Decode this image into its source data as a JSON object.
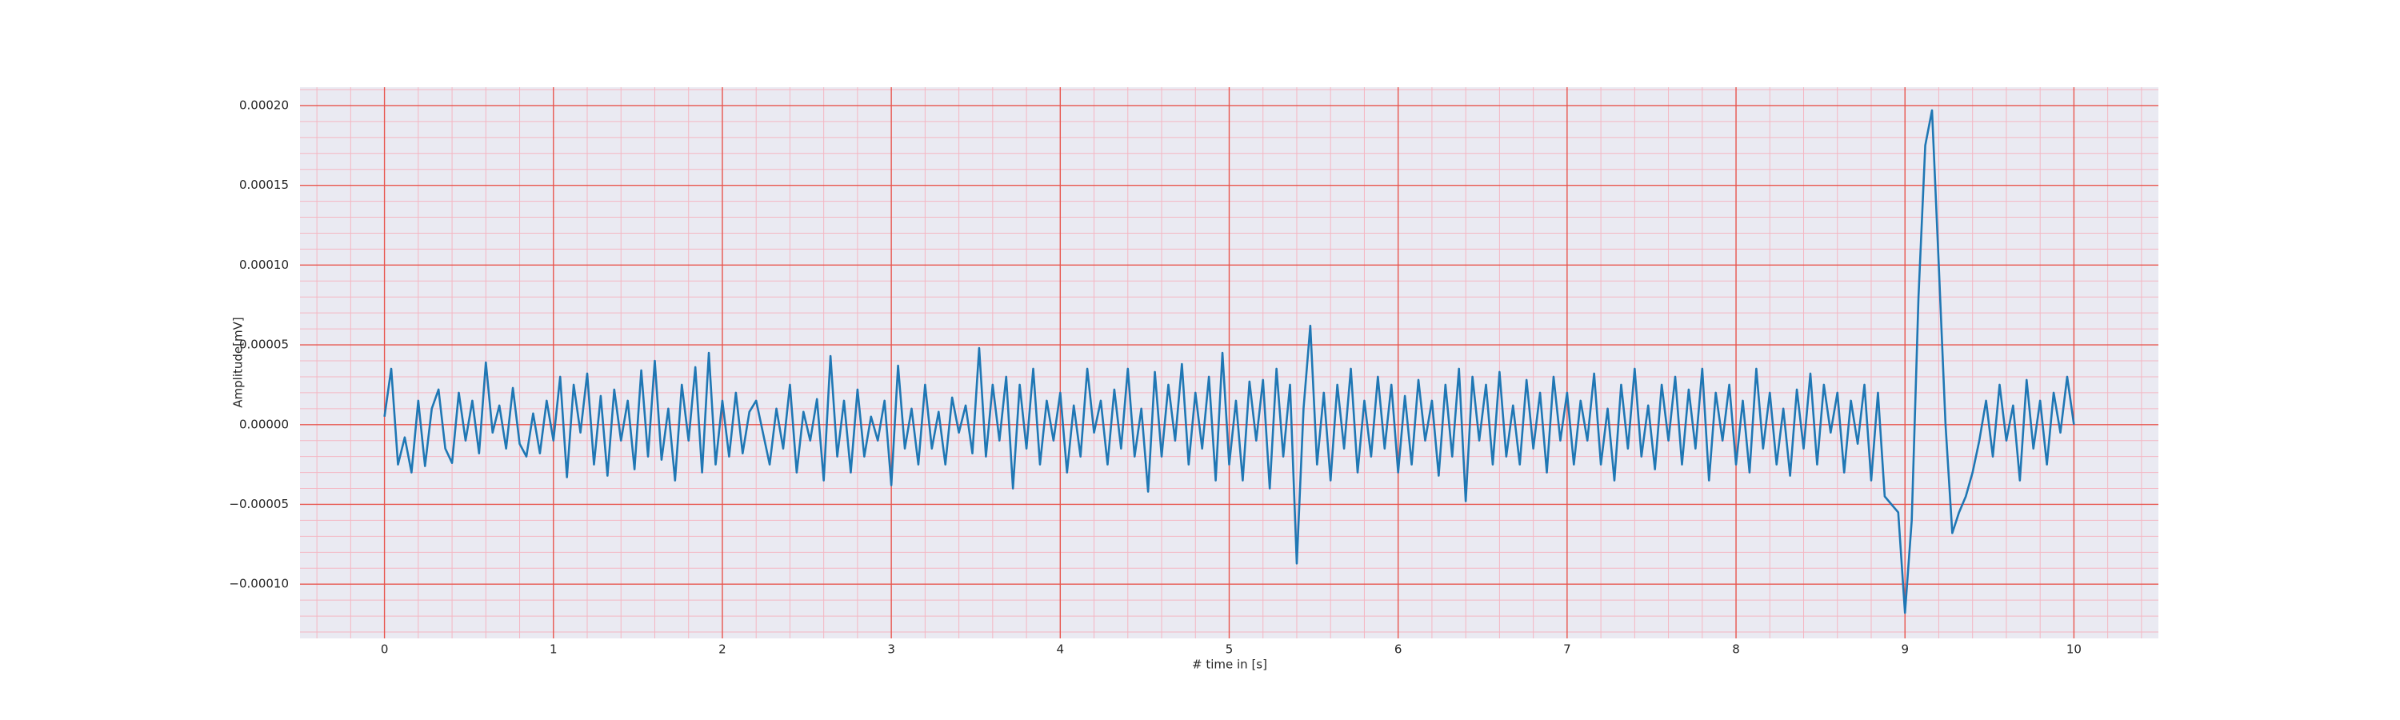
{
  "chart_data": {
    "type": "line",
    "xlabel": "# time in [s]",
    "ylabel": "Amplitude[mV]",
    "color": "#1f77b4",
    "grid": true,
    "minor_grid": true,
    "xlim": [
      -0.5,
      10.5
    ],
    "xticks": [
      0,
      1,
      2,
      3,
      4,
      5,
      6,
      7,
      8,
      9,
      10
    ],
    "ylim": [
      -0.000134,
      0.0002115
    ],
    "yticks": [
      {
        "value": -0.0001,
        "label": "−0.00010"
      },
      {
        "value": -5e-05,
        "label": "−0.00005"
      },
      {
        "value": 0,
        "label": "0.00000"
      },
      {
        "value": 5e-05,
        "label": "0.00005"
      },
      {
        "value": 0.0001,
        "label": "0.00010"
      },
      {
        "value": 0.00015,
        "label": "0.00015"
      },
      {
        "value": 0.0002,
        "label": "0.00020"
      }
    ],
    "x": [
      0,
      0.04,
      0.08,
      0.12,
      0.16,
      0.2,
      0.24,
      0.28,
      0.32,
      0.36,
      0.4,
      0.44,
      0.48,
      0.52,
      0.56,
      0.6,
      0.64,
      0.68,
      0.72,
      0.76,
      0.8,
      0.84,
      0.88,
      0.92,
      0.96,
      1,
      1.04,
      1.08,
      1.12,
      1.16,
      1.2,
      1.24,
      1.28,
      1.32,
      1.36,
      1.4,
      1.44,
      1.48,
      1.52,
      1.56,
      1.6,
      1.64,
      1.68,
      1.72,
      1.76,
      1.8,
      1.84,
      1.88,
      1.92,
      1.96,
      2,
      2.04,
      2.08,
      2.12,
      2.16,
      2.2,
      2.24,
      2.28,
      2.32,
      2.36,
      2.4,
      2.44,
      2.48,
      2.52,
      2.56,
      2.6,
      2.64,
      2.68,
      2.72,
      2.76,
      2.8,
      2.84,
      2.88,
      2.92,
      2.96,
      3,
      3.04,
      3.08,
      3.12,
      3.16,
      3.2,
      3.24,
      3.28,
      3.32,
      3.36,
      3.4,
      3.44,
      3.48,
      3.52,
      3.56,
      3.6,
      3.64,
      3.68,
      3.72,
      3.76,
      3.8,
      3.84,
      3.88,
      3.92,
      3.96,
      4,
      4.04,
      4.08,
      4.12,
      4.16,
      4.2,
      4.24,
      4.28,
      4.32,
      4.36,
      4.4,
      4.44,
      4.48,
      4.52,
      4.56,
      4.6,
      4.64,
      4.68,
      4.72,
      4.76,
      4.8,
      4.84,
      4.88,
      4.92,
      4.96,
      5,
      5.04,
      5.08,
      5.12,
      5.16,
      5.2,
      5.24,
      5.28,
      5.32,
      5.36,
      5.4,
      5.44,
      5.48,
      5.52,
      5.56,
      5.6,
      5.64,
      5.68,
      5.72,
      5.76,
      5.8,
      5.84,
      5.88,
      5.92,
      5.96,
      6,
      6.04,
      6.08,
      6.12,
      6.16,
      6.2,
      6.24,
      6.28,
      6.32,
      6.36,
      6.4,
      6.44,
      6.48,
      6.52,
      6.56,
      6.6,
      6.64,
      6.68,
      6.72,
      6.76,
      6.8,
      6.84,
      6.88,
      6.92,
      6.96,
      7,
      7.04,
      7.08,
      7.12,
      7.16,
      7.2,
      7.24,
      7.28,
      7.32,
      7.36,
      7.4,
      7.44,
      7.48,
      7.52,
      7.56,
      7.6,
      7.64,
      7.68,
      7.72,
      7.76,
      7.8,
      7.84,
      7.88,
      7.92,
      7.96,
      8,
      8.04,
      8.08,
      8.12,
      8.16,
      8.2,
      8.24,
      8.28,
      8.32,
      8.36,
      8.4,
      8.44,
      8.48,
      8.52,
      8.56,
      8.6,
      8.64,
      8.68,
      8.72,
      8.76,
      8.8,
      8.84,
      8.88,
      8.92,
      8.96,
      9,
      9.04,
      9.08,
      9.12,
      9.16,
      9.2,
      9.24,
      9.28,
      9.32,
      9.36,
      9.4,
      9.44,
      9.48,
      9.52,
      9.56,
      9.6,
      9.64,
      9.68,
      9.72,
      9.76,
      9.8,
      9.84,
      9.88,
      9.92,
      9.96,
      10
    ],
    "values": [
      5e-06,
      3.5e-05,
      -2.5e-05,
      -8e-06,
      -3e-05,
      1.5e-05,
      -2.6e-05,
      1e-05,
      2.2e-05,
      -1.5e-05,
      -2.4e-05,
      2e-05,
      -1e-05,
      1.5e-05,
      -1.8e-05,
      3.9e-05,
      -5e-06,
      1.2e-05,
      -1.5e-05,
      2.3e-05,
      -1.2e-05,
      -2e-05,
      7e-06,
      -1.8e-05,
      1.5e-05,
      -1e-05,
      3e-05,
      -3.3e-05,
      2.5e-05,
      -5e-06,
      3.2e-05,
      -2.5e-05,
      1.8e-05,
      -3.2e-05,
      2.2e-05,
      -1e-05,
      1.5e-05,
      -2.8e-05,
      3.4e-05,
      -2e-05,
      4e-05,
      -2.2e-05,
      1e-05,
      -3.5e-05,
      2.5e-05,
      -1e-05,
      3.6e-05,
      -3e-05,
      4.5e-05,
      -2.5e-05,
      1.5e-05,
      -2e-05,
      2e-05,
      -1.8e-05,
      8e-06,
      1.5e-05,
      -5e-06,
      -2.5e-05,
      1e-05,
      -1.5e-05,
      2.5e-05,
      -3e-05,
      8e-06,
      -1e-05,
      1.6e-05,
      -3.5e-05,
      4.3e-05,
      -2e-05,
      1.5e-05,
      -3e-05,
      2.2e-05,
      -2e-05,
      5e-06,
      -1e-05,
      1.5e-05,
      -3.8e-05,
      3.7e-05,
      -1.5e-05,
      1e-05,
      -2.5e-05,
      2.5e-05,
      -1.5e-05,
      8e-06,
      -2.5e-05,
      1.7e-05,
      -5e-06,
      1.2e-05,
      -1.8e-05,
      4.8e-05,
      -2e-05,
      2.5e-05,
      -1e-05,
      3e-05,
      -4e-05,
      2.5e-05,
      -1.5e-05,
      3.5e-05,
      -2.5e-05,
      1.5e-05,
      -1e-05,
      2e-05,
      -3e-05,
      1.2e-05,
      -2e-05,
      3.5e-05,
      -5e-06,
      1.5e-05,
      -2.5e-05,
      2.2e-05,
      -1.5e-05,
      3.5e-05,
      -2e-05,
      1e-05,
      -4.2e-05,
      3.3e-05,
      -2e-05,
      2.5e-05,
      -1e-05,
      3.8e-05,
      -2.5e-05,
      2e-05,
      -1.5e-05,
      3e-05,
      -3.5e-05,
      4.5e-05,
      -2.5e-05,
      1.5e-05,
      -3.5e-05,
      2.7e-05,
      -1e-05,
      2.8e-05,
      -4e-05,
      3.5e-05,
      -2e-05,
      2.5e-05,
      -8.7e-05,
      1e-05,
      6.2e-05,
      -2.5e-05,
      2e-05,
      -3.5e-05,
      2.5e-05,
      -1.5e-05,
      3.5e-05,
      -3e-05,
      1.5e-05,
      -2e-05,
      3e-05,
      -1.5e-05,
      2.5e-05,
      -3e-05,
      1.8e-05,
      -2.5e-05,
      2.8e-05,
      -1e-05,
      1.5e-05,
      -3.2e-05,
      2.5e-05,
      -2e-05,
      3.5e-05,
      -4.8e-05,
      3e-05,
      -1e-05,
      2.5e-05,
      -2.5e-05,
      3.3e-05,
      -2e-05,
      1.2e-05,
      -2.5e-05,
      2.8e-05,
      -1.5e-05,
      2e-05,
      -3e-05,
      3e-05,
      -1e-05,
      2e-05,
      -2.5e-05,
      1.5e-05,
      -1e-05,
      3.2e-05,
      -2.5e-05,
      1e-05,
      -3.5e-05,
      2.5e-05,
      -1.5e-05,
      3.5e-05,
      -2e-05,
      1.2e-05,
      -2.8e-05,
      2.5e-05,
      -1e-05,
      3e-05,
      -2.5e-05,
      2.2e-05,
      -1.5e-05,
      3.5e-05,
      -3.5e-05,
      2e-05,
      -1e-05,
      2.5e-05,
      -2.5e-05,
      1.5e-05,
      -3e-05,
      3.5e-05,
      -1.5e-05,
      2e-05,
      -2.5e-05,
      1e-05,
      -3.2e-05,
      2.2e-05,
      -1.5e-05,
      3.2e-05,
      -2.5e-05,
      2.5e-05,
      -5e-06,
      2e-05,
      -3e-05,
      1.5e-05,
      -1.2e-05,
      2.5e-05,
      -3.5e-05,
      2e-05,
      -4.5e-05,
      -5e-05,
      -5.5e-05,
      -0.000118,
      -6e-05,
      8e-05,
      0.000175,
      0.000197,
      0.0001,
      0,
      -6.8e-05,
      -5.5e-05,
      -4.5e-05,
      -3e-05,
      -1e-05,
      1.5e-05,
      -2e-05,
      2.5e-05,
      -1e-05,
      1.2e-05,
      -3.5e-05,
      2.8e-05,
      -1.5e-05,
      1.5e-05,
      -2.5e-05,
      2e-05,
      -5e-06,
      3e-05,
      0
    ]
  }
}
